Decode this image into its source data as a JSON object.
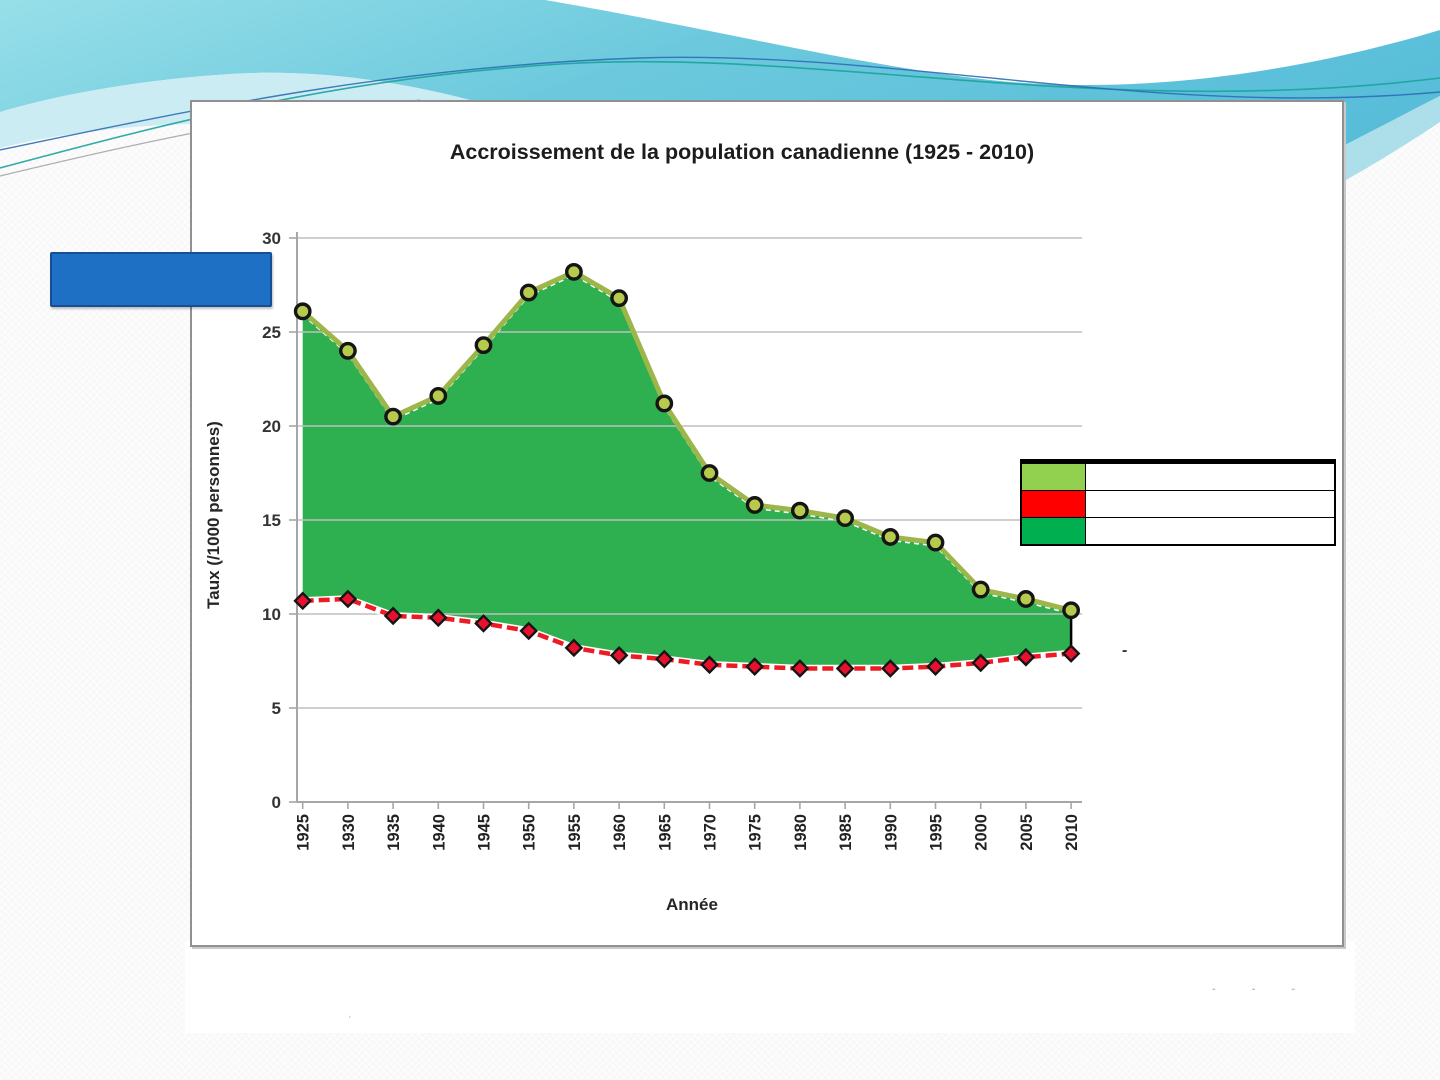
{
  "slide": {
    "placeholder_box": {
      "fill": "#1d70c4",
      "border": "#164f94"
    },
    "dash_note": "-",
    "footer": {
      "marks": [
        "-",
        "-",
        "-"
      ],
      "apostrophe": ","
    }
  },
  "chart": {
    "legend": {
      "position": "right-overlay",
      "rows": [
        {
          "swatch": "#92d050",
          "label": ""
        },
        {
          "swatch": "#ff0000",
          "label": ""
        },
        {
          "swatch": "#00b050",
          "label": ""
        }
      ]
    }
  },
  "chart_data": {
    "type": "area",
    "title": "Accroissement de la population canadienne (1925 - 2010)",
    "xlabel": "Année",
    "ylabel": "Taux (/1000 personnes)",
    "x": [
      1925,
      1930,
      1935,
      1940,
      1945,
      1950,
      1955,
      1960,
      1965,
      1970,
      1975,
      1980,
      1985,
      1990,
      1995,
      2000,
      2005,
      2010
    ],
    "yticks": [
      0,
      5,
      10,
      15,
      20,
      25,
      30
    ],
    "ylim": [
      0,
      30
    ],
    "grid": true,
    "series": [
      {
        "id": "green-area-series",
        "marker": "circle",
        "line_color": "#9db64a",
        "marker_fill": "#b6cb4e",
        "fill_color": "#2eb050",
        "dashed": false,
        "values": [
          26.1,
          24.0,
          20.5,
          21.6,
          24.3,
          27.1,
          28.2,
          26.8,
          21.2,
          17.5,
          15.8,
          15.5,
          15.1,
          14.1,
          13.8,
          11.3,
          10.8,
          10.2
        ]
      },
      {
        "id": "red-dashed-series",
        "marker": "diamond",
        "line_color": "#ed1c24",
        "marker_fill": "#e8112d",
        "dashed": true,
        "values": [
          10.7,
          10.8,
          9.9,
          9.8,
          9.5,
          9.1,
          8.2,
          7.8,
          7.6,
          7.3,
          7.2,
          7.1,
          7.1,
          7.1,
          7.2,
          7.4,
          7.7,
          7.9
        ]
      }
    ]
  }
}
